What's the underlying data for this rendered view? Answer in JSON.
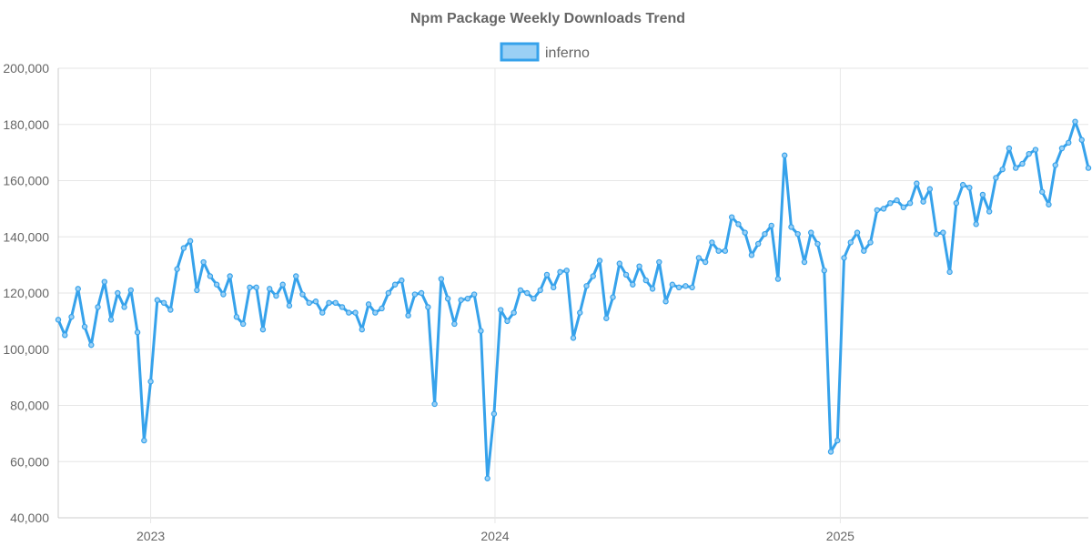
{
  "chart_data": {
    "type": "line",
    "title": "Npm Package Weekly Downloads Trend",
    "legend_placement": "top-center",
    "grid": true,
    "series": [
      {
        "name": "inferno",
        "color": "#36a2eb",
        "fill_color": "#9ad0f5",
        "values": [
          110500,
          105000,
          111500,
          121500,
          108000,
          101500,
          115000,
          124000,
          110500,
          120000,
          115000,
          121000,
          106000,
          67500,
          88500,
          117500,
          116500,
          114000,
          128500,
          136000,
          138500,
          121000,
          131000,
          126000,
          123000,
          119500,
          126000,
          111500,
          109000,
          122000,
          122000,
          107000,
          121500,
          119000,
          123000,
          115500,
          126000,
          119500,
          116500,
          117000,
          113000,
          116500,
          116500,
          115000,
          113000,
          113000,
          107000,
          116000,
          113000,
          114500,
          120000,
          123000,
          124500,
          112000,
          119500,
          120000,
          115000,
          80500,
          125000,
          118000,
          109000,
          117500,
          118000,
          119500,
          106500,
          54000,
          77000,
          114000,
          110000,
          113000,
          121000,
          120000,
          118000,
          121000,
          126500,
          122000,
          127500,
          128000,
          104000,
          113000,
          122500,
          126000,
          131500,
          111000,
          118500,
          130500,
          126500,
          123000,
          129500,
          124500,
          121500,
          131000,
          117000,
          123000,
          122000,
          122500,
          122000,
          132500,
          131000,
          138000,
          135000,
          135000,
          147000,
          144500,
          141500,
          133500,
          137500,
          141000,
          144000,
          125000,
          169000,
          143500,
          141000,
          131000,
          141500,
          137500,
          128000,
          63500,
          67500,
          132500,
          138000,
          141500,
          135000,
          138000,
          149500,
          150000,
          152000,
          153000,
          150500,
          152000,
          159000,
          152500,
          157000,
          141000,
          141500,
          127500,
          152000,
          158500,
          157500,
          144500,
          155000,
          149000,
          161000,
          164000,
          171500,
          164500,
          166000,
          169500,
          171000,
          156000,
          151500,
          165500,
          171500,
          173500,
          181000,
          174500,
          164500
        ]
      }
    ],
    "x_axis": {
      "type": "time",
      "start": "2022-09-25",
      "interval_days": 7,
      "ticks": [
        {
          "label": "2023",
          "date": "2023-01-01"
        },
        {
          "label": "2024",
          "date": "2024-01-01"
        },
        {
          "label": "2025",
          "date": "2025-01-01"
        }
      ]
    },
    "y_axis": {
      "ylim": [
        40000,
        200000
      ],
      "ticks": [
        {
          "value": 40000,
          "label": "40,000"
        },
        {
          "value": 60000,
          "label": "60,000"
        },
        {
          "value": 80000,
          "label": "80,000"
        },
        {
          "value": 100000,
          "label": "100,000"
        },
        {
          "value": 120000,
          "label": "120,000"
        },
        {
          "value": 140000,
          "label": "140,000"
        },
        {
          "value": 160000,
          "label": "160,000"
        },
        {
          "value": 180000,
          "label": "180,000"
        },
        {
          "value": 200000,
          "label": "200,000"
        }
      ]
    }
  }
}
